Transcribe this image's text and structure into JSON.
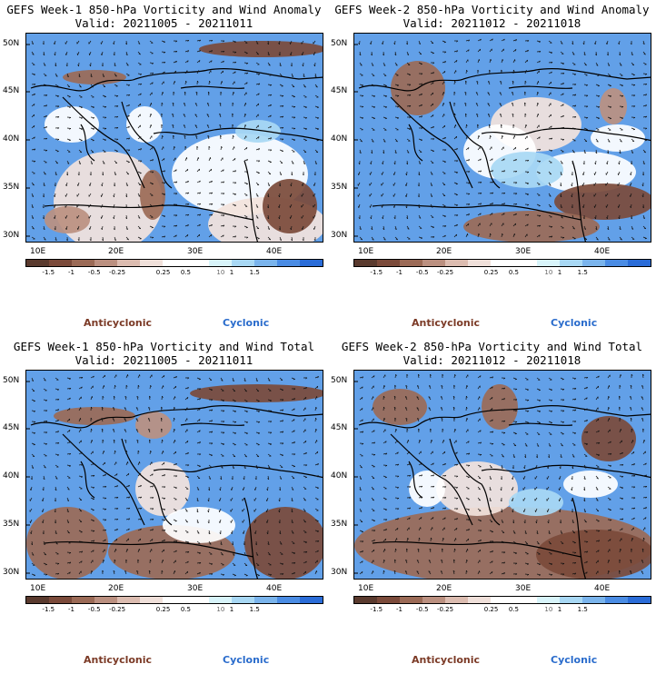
{
  "panels": [
    {
      "id": "p1",
      "title": "GEFS Week-1 850-hPa Vorticity and Wind Anomaly",
      "valid": "Valid: 20211005 - 20211011"
    },
    {
      "id": "p2",
      "title": "GEFS Week-2 850-hPa Vorticity and Wind Anomaly",
      "valid": "Valid: 20211012 - 20211018"
    },
    {
      "id": "p3",
      "title": "GEFS Week-1 850-hPa Vorticity and Wind Total",
      "valid": "Valid: 20211005 - 20211011"
    },
    {
      "id": "p4",
      "title": "GEFS Week-2 850-hPa Vorticity and Wind Total",
      "valid": "Valid: 20211012 - 20211018"
    }
  ],
  "axes": {
    "lat_labels": [
      "50N",
      "45N",
      "40N",
      "35N",
      "30N"
    ],
    "lon_labels": [
      "10E",
      "20E",
      "30E",
      "40E"
    ]
  },
  "colorbar": {
    "colors": [
      "#5a3a2e",
      "#7b4a3a",
      "#9b6a56",
      "#bb9080",
      "#dcbcb0",
      "#f0e0da",
      "#ffffff",
      "#ffffff",
      "#d8f4fa",
      "#a8d8f4",
      "#7ab4ec",
      "#4a8ce4",
      "#2a6cd8"
    ],
    "ticks": [
      "-1.5",
      "-1",
      "-0.5",
      "-0.25",
      "0.25",
      "0.5",
      "1",
      "1.5"
    ],
    "unit_mark": "10"
  },
  "legend": {
    "anticyclonic": "Anticyclonic",
    "cyclonic": "Cyclonic"
  }
}
